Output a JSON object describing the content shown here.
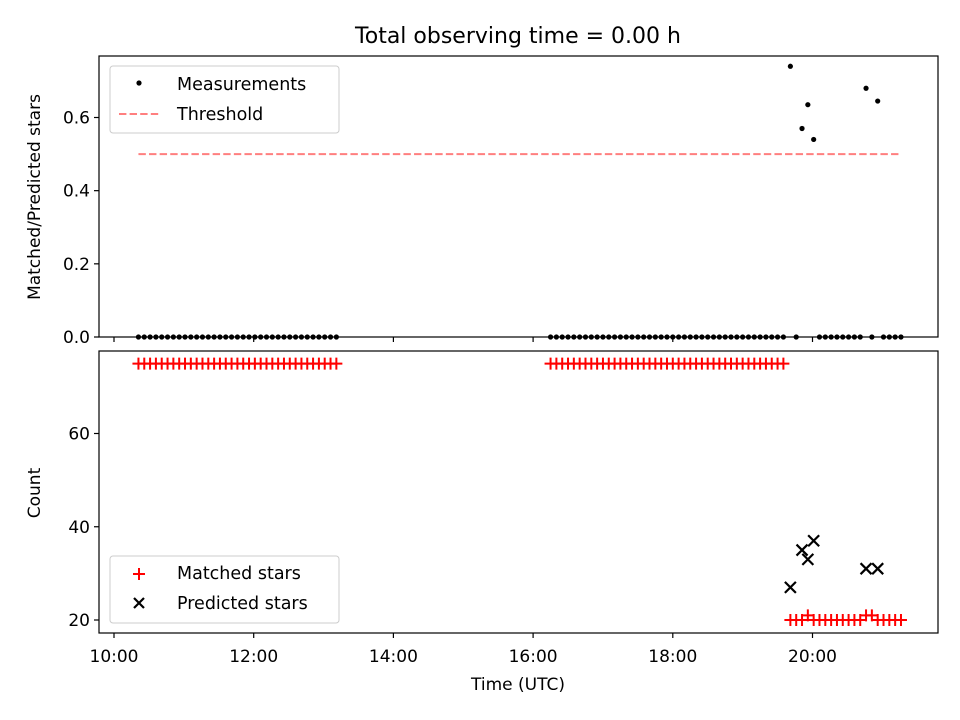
{
  "chart_data": [
    {
      "type": "scatter",
      "title": "Total observing time = 0.00 h",
      "ylabel": "Matched/Predicted stars",
      "xlabel": "",
      "xlim": [
        "10:00",
        "21:30"
      ],
      "ylim": [
        0,
        0.77
      ],
      "yticks": [
        0.0,
        0.2,
        0.4,
        0.6
      ],
      "ytick_labels": [
        "0.0",
        "0.2",
        "0.4",
        "0.6"
      ],
      "grid": false,
      "legend_position": "top-left",
      "legend": [
        "Measurements",
        "Threshold"
      ],
      "series": [
        {
          "name": "Measurements",
          "marker": "dot",
          "color": "#000000",
          "points": [
            [
              "10:21",
              0
            ],
            [
              "10:26",
              0
            ],
            [
              "10:31",
              0
            ],
            [
              "10:36",
              0
            ],
            [
              "10:41",
              0
            ],
            [
              "10:46",
              0
            ],
            [
              "10:51",
              0
            ],
            [
              "10:56",
              0
            ],
            [
              "11:01",
              0
            ],
            [
              "11:06",
              0
            ],
            [
              "11:11",
              0
            ],
            [
              "11:16",
              0
            ],
            [
              "11:21",
              0
            ],
            [
              "11:26",
              0
            ],
            [
              "11:31",
              0
            ],
            [
              "11:36",
              0
            ],
            [
              "11:41",
              0
            ],
            [
              "11:46",
              0
            ],
            [
              "11:51",
              0
            ],
            [
              "11:56",
              0
            ],
            [
              "12:01",
              0
            ],
            [
              "12:06",
              0
            ],
            [
              "12:11",
              0
            ],
            [
              "12:16",
              0
            ],
            [
              "12:21",
              0
            ],
            [
              "12:26",
              0
            ],
            [
              "12:31",
              0
            ],
            [
              "12:36",
              0
            ],
            [
              "12:41",
              0
            ],
            [
              "12:46",
              0
            ],
            [
              "12:51",
              0
            ],
            [
              "12:56",
              0
            ],
            [
              "13:01",
              0
            ],
            [
              "13:06",
              0
            ],
            [
              "13:11",
              0
            ],
            [
              "16:15",
              0
            ],
            [
              "16:20",
              0
            ],
            [
              "16:25",
              0
            ],
            [
              "16:30",
              0
            ],
            [
              "16:35",
              0
            ],
            [
              "16:40",
              0
            ],
            [
              "16:45",
              0
            ],
            [
              "16:50",
              0
            ],
            [
              "16:55",
              0
            ],
            [
              "17:00",
              0
            ],
            [
              "17:05",
              0
            ],
            [
              "17:10",
              0
            ],
            [
              "17:15",
              0
            ],
            [
              "17:20",
              0
            ],
            [
              "17:25",
              0
            ],
            [
              "17:30",
              0
            ],
            [
              "17:35",
              0
            ],
            [
              "17:40",
              0
            ],
            [
              "17:45",
              0
            ],
            [
              "17:50",
              0
            ],
            [
              "17:55",
              0
            ],
            [
              "18:00",
              0
            ],
            [
              "18:05",
              0
            ],
            [
              "18:10",
              0
            ],
            [
              "18:15",
              0
            ],
            [
              "18:20",
              0
            ],
            [
              "18:25",
              0
            ],
            [
              "18:30",
              0
            ],
            [
              "18:35",
              0
            ],
            [
              "18:40",
              0
            ],
            [
              "18:45",
              0
            ],
            [
              "18:50",
              0
            ],
            [
              "18:55",
              0
            ],
            [
              "19:00",
              0
            ],
            [
              "19:05",
              0
            ],
            [
              "19:10",
              0
            ],
            [
              "19:15",
              0
            ],
            [
              "19:20",
              0
            ],
            [
              "19:25",
              0
            ],
            [
              "19:30",
              0
            ],
            [
              "19:35",
              0
            ],
            [
              "19:41",
              0.74
            ],
            [
              "19:46",
              0
            ],
            [
              "19:51",
              0.57
            ],
            [
              "19:56",
              0.635
            ],
            [
              "20:01",
              0.54
            ],
            [
              "20:06",
              0
            ],
            [
              "20:11",
              0
            ],
            [
              "20:16",
              0
            ],
            [
              "20:21",
              0
            ],
            [
              "20:26",
              0
            ],
            [
              "20:31",
              0
            ],
            [
              "20:36",
              0
            ],
            [
              "20:41",
              0
            ],
            [
              "20:46",
              0.68
            ],
            [
              "20:51",
              0
            ],
            [
              "20:56",
              0.645
            ],
            [
              "21:01",
              0
            ],
            [
              "21:06",
              0
            ],
            [
              "21:11",
              0
            ],
            [
              "21:16",
              0
            ]
          ]
        },
        {
          "name": "Threshold",
          "style": "dashed",
          "color": "#ff7f7f",
          "points": [
            [
              "10:21",
              0.5
            ],
            [
              "21:16",
              0.5
            ]
          ]
        }
      ]
    },
    {
      "type": "scatter",
      "title": "",
      "ylabel": "Count",
      "xlabel": "Time (UTC)",
      "xlim": [
        "10:00",
        "21:30"
      ],
      "ylim": [
        18,
        80
      ],
      "yticks": [
        20,
        40,
        60
      ],
      "ytick_labels": [
        "20",
        "40",
        "60"
      ],
      "xticks": [
        "10:00",
        "12:00",
        "14:00",
        "16:00",
        "18:00",
        "20:00"
      ],
      "grid": false,
      "legend_position": "bottom-left",
      "legend": [
        "Matched stars",
        "Predicted stars"
      ],
      "series": [
        {
          "name": "Matched stars",
          "marker": "plus",
          "color": "#ff0000",
          "points": [
            [
              "10:21",
              75
            ],
            [
              "10:26",
              75
            ],
            [
              "10:31",
              75
            ],
            [
              "10:36",
              75
            ],
            [
              "10:41",
              75
            ],
            [
              "10:46",
              75
            ],
            [
              "10:51",
              75
            ],
            [
              "10:56",
              75
            ],
            [
              "11:01",
              75
            ],
            [
              "11:06",
              75
            ],
            [
              "11:11",
              75
            ],
            [
              "11:16",
              75
            ],
            [
              "11:21",
              75
            ],
            [
              "11:26",
              75
            ],
            [
              "11:31",
              75
            ],
            [
              "11:36",
              75
            ],
            [
              "11:41",
              75
            ],
            [
              "11:46",
              75
            ],
            [
              "11:51",
              75
            ],
            [
              "11:56",
              75
            ],
            [
              "12:01",
              75
            ],
            [
              "12:06",
              75
            ],
            [
              "12:11",
              75
            ],
            [
              "12:16",
              75
            ],
            [
              "12:21",
              75
            ],
            [
              "12:26",
              75
            ],
            [
              "12:31",
              75
            ],
            [
              "12:36",
              75
            ],
            [
              "12:41",
              75
            ],
            [
              "12:46",
              75
            ],
            [
              "12:51",
              75
            ],
            [
              "12:56",
              75
            ],
            [
              "13:01",
              75
            ],
            [
              "13:06",
              75
            ],
            [
              "13:11",
              75
            ],
            [
              "16:15",
              75
            ],
            [
              "16:20",
              75
            ],
            [
              "16:25",
              75
            ],
            [
              "16:30",
              75
            ],
            [
              "16:35",
              75
            ],
            [
              "16:40",
              75
            ],
            [
              "16:45",
              75
            ],
            [
              "16:50",
              75
            ],
            [
              "16:55",
              75
            ],
            [
              "17:00",
              75
            ],
            [
              "17:05",
              75
            ],
            [
              "17:10",
              75
            ],
            [
              "17:15",
              75
            ],
            [
              "17:20",
              75
            ],
            [
              "17:25",
              75
            ],
            [
              "17:30",
              75
            ],
            [
              "17:35",
              75
            ],
            [
              "17:40",
              75
            ],
            [
              "17:45",
              75
            ],
            [
              "17:50",
              75
            ],
            [
              "17:55",
              75
            ],
            [
              "18:00",
              75
            ],
            [
              "18:05",
              75
            ],
            [
              "18:10",
              75
            ],
            [
              "18:15",
              75
            ],
            [
              "18:20",
              75
            ],
            [
              "18:25",
              75
            ],
            [
              "18:30",
              75
            ],
            [
              "18:35",
              75
            ],
            [
              "18:40",
              75
            ],
            [
              "18:45",
              75
            ],
            [
              "18:50",
              75
            ],
            [
              "18:55",
              75
            ],
            [
              "19:00",
              75
            ],
            [
              "19:05",
              75
            ],
            [
              "19:10",
              75
            ],
            [
              "19:15",
              75
            ],
            [
              "19:20",
              75
            ],
            [
              "19:25",
              75
            ],
            [
              "19:30",
              75
            ],
            [
              "19:35",
              75
            ],
            [
              "19:41",
              20
            ],
            [
              "19:46",
              20
            ],
            [
              "19:51",
              20
            ],
            [
              "19:56",
              21
            ],
            [
              "20:01",
              20
            ],
            [
              "20:06",
              20
            ],
            [
              "20:11",
              20
            ],
            [
              "20:16",
              20
            ],
            [
              "20:21",
              20
            ],
            [
              "20:26",
              20
            ],
            [
              "20:31",
              20
            ],
            [
              "20:36",
              20
            ],
            [
              "20:41",
              20
            ],
            [
              "20:46",
              21
            ],
            [
              "20:51",
              21
            ],
            [
              "20:56",
              20
            ],
            [
              "21:01",
              20
            ],
            [
              "21:06",
              20
            ],
            [
              "21:11",
              20
            ],
            [
              "21:16",
              20
            ]
          ]
        },
        {
          "name": "Predicted stars",
          "marker": "x",
          "color": "#000000",
          "points": [
            [
              "19:41",
              27
            ],
            [
              "19:51",
              35
            ],
            [
              "19:56",
              33
            ],
            [
              "20:01",
              37
            ],
            [
              "20:46",
              31
            ],
            [
              "20:56",
              31
            ]
          ]
        }
      ]
    }
  ],
  "colors": {
    "threshold": "#ff7f7f",
    "matched": "#ff0000",
    "ink": "#000000"
  }
}
